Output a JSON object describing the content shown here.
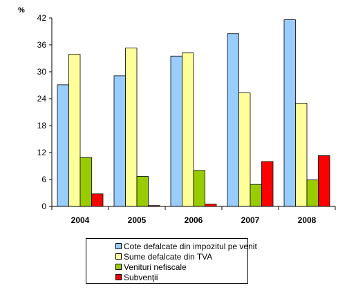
{
  "chart_data": {
    "type": "bar",
    "ylabel": "%",
    "categories": [
      "2004",
      "2005",
      "2006",
      "2007",
      "2008"
    ],
    "ylim": [
      0,
      42
    ],
    "yticks": [
      0,
      6,
      12,
      18,
      24,
      30,
      36,
      42
    ],
    "grid": false,
    "legend_position": "bottom",
    "series": [
      {
        "name": "Cote defalcate din impozitul pe venit",
        "color": "#99CCFF",
        "values": [
          27.1,
          29.1,
          33.5,
          38.5,
          41.6
        ]
      },
      {
        "name": "Sume defalcate din TVA",
        "color": "#FFFF99",
        "values": [
          33.9,
          35.3,
          34.2,
          25.3,
          23.0
        ]
      },
      {
        "name": "Venituri nefiscale",
        "color": "#99CC00",
        "values": [
          10.9,
          6.7,
          8.0,
          4.9,
          5.9
        ]
      },
      {
        "name": "Subvenţii",
        "color": "#FF0000",
        "values": [
          2.8,
          0.2,
          0.5,
          10.0,
          11.3
        ]
      }
    ]
  }
}
